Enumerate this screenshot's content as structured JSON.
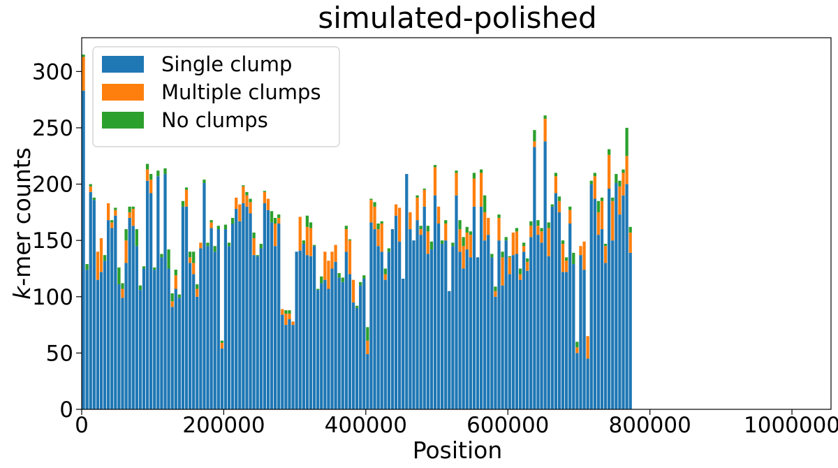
{
  "chart_data": {
    "type": "bar",
    "stacked": true,
    "title": "simulated-polished",
    "xlabel": "Position",
    "ylabel_italic": "k",
    "ylabel_rest": "-mer counts",
    "xlim": [
      0,
      1055000
    ],
    "ylim": [
      0,
      330
    ],
    "xticks": [
      0,
      200000,
      400000,
      600000,
      800000,
      1000000
    ],
    "xtick_labels": [
      "0",
      "200000",
      "400000",
      "600000",
      "800000",
      "1000000"
    ],
    "yticks": [
      0,
      50,
      100,
      150,
      200,
      250,
      300
    ],
    "ytick_labels": [
      "0",
      "50",
      "100",
      "150",
      "200",
      "250",
      "300"
    ],
    "bin_width": 5000,
    "bar_width": 4200,
    "grid": false,
    "legend": {
      "position": "top-left"
    },
    "series": [
      {
        "name": "Single clump",
        "color": "#1f77b4",
        "values": [
          283,
          124,
          193,
          186,
          115,
          122,
          132,
          168,
          161,
          172,
          111,
          99,
          130,
          170,
          163,
          145,
          106,
          125,
          203,
          192,
          124,
          207,
          135,
          209,
          125,
          91,
          107,
          99,
          180,
          180,
          130,
          120,
          100,
          143,
          201,
          145,
          161,
          140,
          160,
          54,
          160,
          145,
          165,
          178,
          167,
          183,
          180,
          174,
          137,
          136,
          143,
          183,
          177,
          166,
          145,
          165,
          84,
          75,
          80,
          75,
          140,
          141,
          147,
          137,
          136,
          145,
          106,
          112,
          115,
          107,
          125,
          131,
          117,
          113,
          140,
          120,
          95,
          90,
          110,
          116,
          49,
          166,
          160,
          145,
          140,
          115,
          140,
          160,
          172,
          149,
          116,
          209,
          160,
          150,
          168,
          155,
          180,
          138,
          142,
          190,
          165,
          147,
          150,
          105,
          145,
          190,
          140,
          125,
          142,
          135,
          180,
          135,
          180,
          150,
          155,
          135,
          100,
          150,
          110,
          150,
          120,
          137,
          138,
          115,
          140,
          123,
          153,
          233,
          155,
          148,
          238,
          136,
          180,
          192,
          175,
          122,
          122,
          165,
          129,
          50,
          137,
          124,
          45,
          200,
          187,
          155,
          160,
          130,
          196,
          150,
          201,
          173,
          190,
          200,
          139
        ]
      },
      {
        "name": "Multiple clumps",
        "color": "#ff7f0e",
        "values": [
          30,
          0,
          5,
          0,
          25,
          30,
          0,
          15,
          5,
          5,
          0,
          8,
          20,
          5,
          15,
          0,
          0,
          0,
          10,
          12,
          0,
          0,
          0,
          0,
          0,
          5,
          12,
          0,
          0,
          15,
          5,
          10,
          7,
          5,
          0,
          0,
          5,
          0,
          0,
          5,
          0,
          0,
          0,
          10,
          15,
          15,
          10,
          10,
          15,
          0,
          0,
          10,
          10,
          0,
          20,
          5,
          5,
          10,
          5,
          3,
          0,
          30,
          0,
          25,
          25,
          0,
          0,
          0,
          25,
          25,
          15,
          15,
          0,
          0,
          20,
          30,
          20,
          0,
          0,
          0,
          12,
          20,
          20,
          15,
          25,
          5,
          0,
          0,
          10,
          30,
          0,
          0,
          15,
          0,
          20,
          5,
          15,
          20,
          0,
          25,
          15,
          0,
          15,
          0,
          0,
          20,
          20,
          20,
          15,
          20,
          25,
          0,
          30,
          25,
          15,
          0,
          5,
          20,
          25,
          0,
          15,
          20,
          20,
          5,
          5,
          8,
          10,
          5,
          8,
          10,
          20,
          25,
          0,
          15,
          10,
          25,
          10,
          12,
          0,
          5,
          8,
          25,
          20,
          0,
          20,
          20,
          25,
          15,
          30,
          35,
          0,
          25,
          20,
          25,
          18
        ]
      },
      {
        "name": "No clumps",
        "color": "#2ca02c",
        "values": [
          2,
          5,
          2,
          2,
          0,
          0,
          5,
          0,
          2,
          2,
          15,
          5,
          10,
          5,
          2,
          15,
          4,
          2,
          5,
          5,
          2,
          5,
          3,
          5,
          17,
          7,
          5,
          3,
          5,
          2,
          5,
          10,
          4,
          0,
          3,
          3,
          2,
          5,
          3,
          2,
          4,
          3,
          5,
          0,
          0,
          1,
          3,
          3,
          5,
          1,
          4,
          1,
          0,
          10,
          5,
          3,
          0,
          3,
          3,
          0,
          0,
          0,
          3,
          10,
          5,
          1,
          1,
          6,
          0,
          0,
          0,
          0,
          4,
          4,
          3,
          1,
          0,
          2,
          3,
          3,
          12,
          1,
          4,
          5,
          2,
          5,
          3,
          0,
          0,
          0,
          0,
          0,
          0,
          0,
          2,
          3,
          1,
          5,
          7,
          2,
          0,
          3,
          3,
          0,
          3,
          2,
          8,
          8,
          5,
          3,
          5,
          0,
          3,
          15,
          0,
          3,
          4,
          3,
          5,
          3,
          1,
          0,
          3,
          5,
          3,
          3,
          4,
          10,
          5,
          3,
          3,
          5,
          2,
          3,
          4,
          3,
          3,
          3,
          10,
          5,
          0,
          0,
          0,
          3,
          3,
          10,
          3,
          2,
          5,
          3,
          8,
          5,
          3,
          25,
          5
        ]
      }
    ]
  }
}
